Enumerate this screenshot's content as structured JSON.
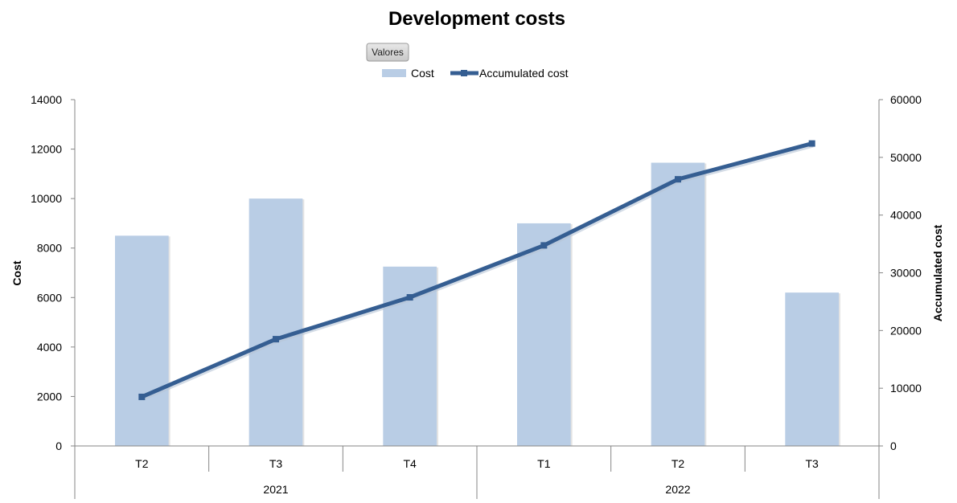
{
  "chart_data": {
    "type": "bar",
    "title": "Development costs",
    "filter_button_label": "Valores",
    "categories": [
      "T2",
      "T3",
      "T4",
      "T1",
      "T2",
      "T3"
    ],
    "category_groups": [
      {
        "label": "2021",
        "span": 3
      },
      {
        "label": "2022",
        "span": 3
      }
    ],
    "series": [
      {
        "name": "Cost",
        "type": "bar",
        "axis": "left",
        "color": "#b9cde5",
        "values": [
          8500,
          10000,
          7250,
          9000,
          11450,
          6200
        ]
      },
      {
        "name": "Accumulated cost",
        "type": "line",
        "axis": "right",
        "color": "#355e92",
        "values": [
          8500,
          18500,
          25750,
          34750,
          46200,
          52400
        ]
      }
    ],
    "ylabel": "Cost",
    "ylim": [
      0,
      14000
    ],
    "yticks": [
      "0",
      "2000",
      "4000",
      "6000",
      "8000",
      "10000",
      "12000",
      "14000"
    ],
    "y2label": "Accumulated cost",
    "y2lim": [
      0,
      60000
    ],
    "y2ticks": [
      "0",
      "10000",
      "20000",
      "30000",
      "40000",
      "50000",
      "60000"
    ],
    "legend_position": "top",
    "grid": false
  }
}
